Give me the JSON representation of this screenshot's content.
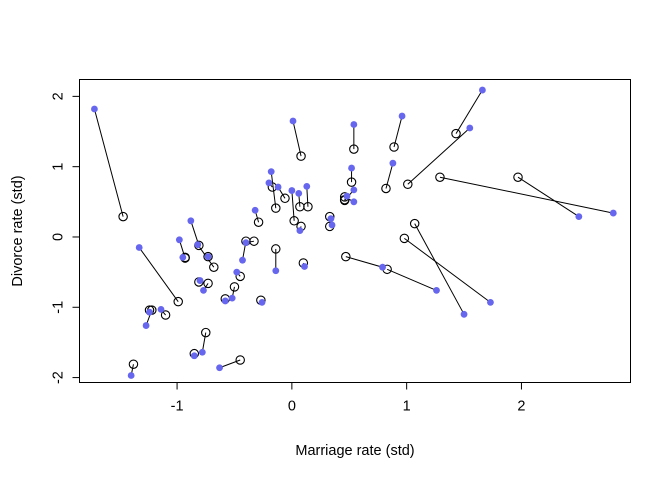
{
  "chart_data": {
    "type": "scatter",
    "title": "",
    "xlabel": "Marriage rate (std)",
    "ylabel": "Divorce rate (std)",
    "xlim": [
      -1.85,
      2.95
    ],
    "ylim": [
      -2.07,
      2.24
    ],
    "xticks": [
      -1,
      0,
      1,
      2
    ],
    "yticks": [
      -2,
      -1,
      0,
      1,
      2
    ],
    "xtick_labels": [
      "-1",
      "0",
      "1",
      "2"
    ],
    "ytick_labels": [
      "-2",
      "-1",
      "0",
      "1",
      "2"
    ],
    "grid": false,
    "legend": "none",
    "colors": {
      "observed": "#6666ee",
      "estimated": "#000000",
      "segment": "#000000"
    },
    "series": [
      {
        "marker": "filled-circle"
      },
      {
        "marker": "open-circle"
      }
    ],
    "pairs": [
      {
        "observed": [
          -1.72,
          1.82
        ],
        "estimated": [
          -1.47,
          0.29
        ]
      },
      {
        "observed": [
          -1.33,
          -0.15
        ],
        "estimated": [
          -0.99,
          -0.92
        ]
      },
      {
        "observed": [
          -1.4,
          -1.97
        ],
        "estimated": [
          -1.38,
          -1.81
        ]
      },
      {
        "observed": [
          -1.27,
          -1.26
        ],
        "estimated": [
          -1.22,
          -1.04
        ]
      },
      {
        "observed": [
          -1.24,
          -1.07
        ],
        "estimated": [
          -1.24,
          -1.04
        ]
      },
      {
        "observed": [
          -1.14,
          -1.03
        ],
        "estimated": [
          -1.1,
          -1.11
        ]
      },
      {
        "observed": [
          -0.98,
          -0.04
        ],
        "estimated": [
          -0.93,
          -0.3
        ]
      },
      {
        "observed": [
          -0.95,
          -0.29
        ],
        "estimated": [
          -0.93,
          -0.29
        ]
      },
      {
        "observed": [
          -0.88,
          0.23
        ],
        "estimated": [
          -0.81,
          -0.12
        ]
      },
      {
        "observed": [
          -0.82,
          -0.11
        ],
        "estimated": [
          -0.68,
          -0.43
        ]
      },
      {
        "observed": [
          -0.8,
          -0.62
        ],
        "estimated": [
          -0.81,
          -0.64
        ]
      },
      {
        "observed": [
          -0.77,
          -0.76
        ],
        "estimated": [
          -0.73,
          -0.66
        ]
      },
      {
        "observed": [
          -0.85,
          -1.69
        ],
        "estimated": [
          -0.85,
          -1.66
        ]
      },
      {
        "observed": [
          -0.78,
          -1.64
        ],
        "estimated": [
          -0.75,
          -1.36
        ]
      },
      {
        "observed": [
          -0.73,
          -0.28
        ],
        "estimated": [
          -0.73,
          -0.28
        ]
      },
      {
        "observed": [
          -0.63,
          -1.86
        ],
        "estimated": [
          -0.45,
          -1.75
        ]
      },
      {
        "observed": [
          -0.58,
          -0.91
        ],
        "estimated": [
          -0.58,
          -0.88
        ]
      },
      {
        "observed": [
          -0.52,
          -0.87
        ],
        "estimated": [
          -0.5,
          -0.71
        ]
      },
      {
        "observed": [
          -0.48,
          -0.5
        ],
        "estimated": [
          -0.45,
          -0.56
        ]
      },
      {
        "observed": [
          -0.43,
          -0.33
        ],
        "estimated": [
          -0.4,
          -0.06
        ]
      },
      {
        "observed": [
          -0.4,
          -0.08
        ],
        "estimated": [
          -0.33,
          -0.06
        ]
      },
      {
        "observed": [
          -0.32,
          0.38
        ],
        "estimated": [
          -0.29,
          0.21
        ]
      },
      {
        "observed": [
          -0.26,
          -0.93
        ],
        "estimated": [
          -0.27,
          -0.9
        ]
      },
      {
        "observed": [
          -0.2,
          0.77
        ],
        "estimated": [
          -0.17,
          0.71
        ]
      },
      {
        "observed": [
          -0.18,
          0.93
        ],
        "estimated": [
          -0.14,
          0.41
        ]
      },
      {
        "observed": [
          -0.12,
          0.71
        ],
        "estimated": [
          -0.06,
          0.55
        ]
      },
      {
        "observed": [
          -0.14,
          -0.48
        ],
        "estimated": [
          -0.14,
          -0.17
        ]
      },
      {
        "observed": [
          0.01,
          1.65
        ],
        "estimated": [
          0.08,
          1.15
        ]
      },
      {
        "observed": [
          0.0,
          0.66
        ],
        "estimated": [
          0.02,
          0.23
        ]
      },
      {
        "observed": [
          0.06,
          0.62
        ],
        "estimated": [
          0.07,
          0.43
        ]
      },
      {
        "observed": [
          0.07,
          0.09
        ],
        "estimated": [
          0.08,
          0.15
        ]
      },
      {
        "observed": [
          0.11,
          -0.42
        ],
        "estimated": [
          0.1,
          -0.37
        ]
      },
      {
        "observed": [
          0.13,
          0.72
        ],
        "estimated": [
          0.14,
          0.43
        ]
      },
      {
        "observed": [
          0.34,
          0.26
        ],
        "estimated": [
          0.33,
          0.15
        ]
      },
      {
        "observed": [
          0.35,
          0.17
        ],
        "estimated": [
          0.33,
          0.29
        ]
      },
      {
        "observed": [
          0.48,
          0.58
        ],
        "estimated": [
          0.46,
          0.53
        ]
      },
      {
        "observed": [
          0.52,
          0.98
        ],
        "estimated": [
          0.52,
          0.78
        ]
      },
      {
        "observed": [
          0.54,
          1.6
        ],
        "estimated": [
          0.54,
          1.25
        ]
      },
      {
        "observed": [
          0.54,
          0.67
        ],
        "estimated": [
          0.46,
          0.52
        ]
      },
      {
        "observed": [
          0.79,
          -0.43
        ],
        "estimated": [
          0.47,
          -0.28
        ]
      },
      {
        "observed": [
          0.88,
          1.05
        ],
        "estimated": [
          0.82,
          0.69
        ]
      },
      {
        "observed": [
          0.96,
          1.72
        ],
        "estimated": [
          0.89,
          1.28
        ]
      },
      {
        "observed": [
          1.26,
          -0.76
        ],
        "estimated": [
          0.83,
          -0.46
        ]
      },
      {
        "observed": [
          1.5,
          -1.1
        ],
        "estimated": [
          1.07,
          0.19
        ]
      },
      {
        "observed": [
          1.73,
          -0.93
        ],
        "estimated": [
          0.98,
          -0.02
        ]
      },
      {
        "observed": [
          1.66,
          2.09
        ],
        "estimated": [
          1.43,
          1.47
        ]
      },
      {
        "observed": [
          1.55,
          1.55
        ],
        "estimated": [
          1.01,
          0.75
        ]
      },
      {
        "observed": [
          2.5,
          0.29
        ],
        "estimated": [
          1.97,
          0.85
        ]
      },
      {
        "observed": [
          2.8,
          0.34
        ],
        "estimated": [
          1.29,
          0.85
        ]
      },
      {
        "observed": [
          0.54,
          0.5
        ],
        "estimated": [
          0.46,
          0.57
        ]
      }
    ]
  }
}
